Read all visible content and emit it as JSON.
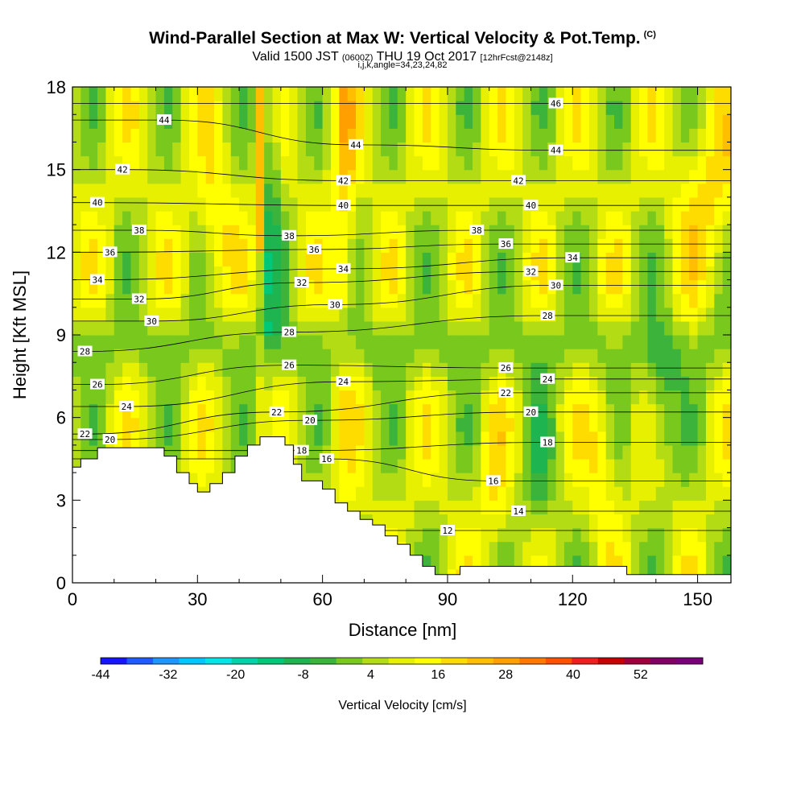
{
  "title": {
    "main": "Wind-Parallel Section at Max W: Vertical Velocity & Pot.Temp.",
    "copyright": "(C)",
    "valid_prefix": "Valid 1500 JST",
    "valid_utc": "(0600Z)",
    "valid_date": "THU 19 Oct 2017",
    "forecast": "[12hrFcst@2148z]",
    "ijk": "i,j,k,angle=34,23,24,82"
  },
  "chart_data": {
    "type": "heatmap",
    "xlabel": "Distance [nm]",
    "ylabel": "Height [Kft MSL]",
    "xlim": [
      0,
      158
    ],
    "ylim": [
      0,
      18
    ],
    "x_ticks": [
      0,
      30,
      60,
      90,
      120,
      150
    ],
    "y_ticks": [
      0,
      3,
      6,
      9,
      12,
      15,
      18
    ],
    "colorbar": {
      "label": "Vertical Velocity [cm/s]",
      "tick_labels": [
        "-44",
        "-32",
        "-20",
        "-8",
        "4",
        "16",
        "28",
        "40",
        "52"
      ],
      "colors": [
        "#1414ff",
        "#1e5aff",
        "#1e96ff",
        "#00c8ff",
        "#00e6e6",
        "#00d2aa",
        "#00c878",
        "#1eb450",
        "#3cb43c",
        "#78c81e",
        "#b4dc14",
        "#e6f000",
        "#ffff00",
        "#ffdc00",
        "#ffbe00",
        "#ffa000",
        "#ff7800",
        "#ff5000",
        "#f01e1e",
        "#c80000",
        "#a0003c",
        "#820064",
        "#780078"
      ]
    },
    "theta_contour_labels": [
      {
        "v": "46",
        "x": 116,
        "y": 17.4
      },
      {
        "v": "44",
        "x": 22,
        "y": 16.8
      },
      {
        "v": "44",
        "x": 68,
        "y": 15.9
      },
      {
        "v": "44",
        "x": 116,
        "y": 15.7
      },
      {
        "v": "42",
        "x": 12,
        "y": 15.0
      },
      {
        "v": "42",
        "x": 65,
        "y": 14.6
      },
      {
        "v": "42",
        "x": 107,
        "y": 14.6
      },
      {
        "v": "40",
        "x": 6,
        "y": 13.8
      },
      {
        "v": "40",
        "x": 65,
        "y": 13.7
      },
      {
        "v": "40",
        "x": 110,
        "y": 13.7
      },
      {
        "v": "38",
        "x": 16,
        "y": 12.8
      },
      {
        "v": "38",
        "x": 52,
        "y": 12.6
      },
      {
        "v": "38",
        "x": 97,
        "y": 12.8
      },
      {
        "v": "36",
        "x": 9,
        "y": 12.0
      },
      {
        "v": "36",
        "x": 58,
        "y": 12.1
      },
      {
        "v": "36",
        "x": 104,
        "y": 12.3
      },
      {
        "v": "34",
        "x": 6,
        "y": 11.0
      },
      {
        "v": "34",
        "x": 65,
        "y": 11.4
      },
      {
        "v": "34",
        "x": 120,
        "y": 11.8
      },
      {
        "v": "32",
        "x": 16,
        "y": 10.3
      },
      {
        "v": "32",
        "x": 55,
        "y": 10.9
      },
      {
        "v": "32",
        "x": 110,
        "y": 11.3
      },
      {
        "v": "30",
        "x": 19,
        "y": 9.5
      },
      {
        "v": "30",
        "x": 63,
        "y": 10.1
      },
      {
        "v": "30",
        "x": 116,
        "y": 10.8
      },
      {
        "v": "28",
        "x": 3,
        "y": 8.4
      },
      {
        "v": "28",
        "x": 52,
        "y": 9.1
      },
      {
        "v": "28",
        "x": 114,
        "y": 9.7
      },
      {
        "v": "26",
        "x": 6,
        "y": 7.2
      },
      {
        "v": "26",
        "x": 52,
        "y": 7.9
      },
      {
        "v": "26",
        "x": 104,
        "y": 7.8
      },
      {
        "v": "24",
        "x": 13,
        "y": 6.4
      },
      {
        "v": "24",
        "x": 65,
        "y": 7.3
      },
      {
        "v": "24",
        "x": 114,
        "y": 7.4
      },
      {
        "v": "22",
        "x": 3,
        "y": 5.4
      },
      {
        "v": "22",
        "x": 49,
        "y": 6.2
      },
      {
        "v": "22",
        "x": 104,
        "y": 6.9
      },
      {
        "v": "20",
        "x": 9,
        "y": 5.2
      },
      {
        "v": "20",
        "x": 57,
        "y": 5.9
      },
      {
        "v": "20",
        "x": 110,
        "y": 6.2
      },
      {
        "v": "18",
        "x": 55,
        "y": 4.8
      },
      {
        "v": "18",
        "x": 114,
        "y": 5.1
      },
      {
        "v": "16",
        "x": 61,
        "y": 4.5
      },
      {
        "v": "16",
        "x": 101,
        "y": 3.7
      },
      {
        "v": "14",
        "x": 107,
        "y": 2.6
      },
      {
        "v": "12",
        "x": 90,
        "y": 1.9
      }
    ],
    "terrain_profile": {
      "x": [
        0,
        2,
        2,
        4,
        4,
        6,
        6,
        9,
        9,
        12,
        12,
        16,
        16,
        19,
        19,
        22,
        22,
        25,
        25,
        28,
        28,
        30,
        30,
        33,
        33,
        36,
        36,
        39,
        39,
        42,
        42,
        45,
        45,
        48,
        48,
        51,
        51,
        53,
        53,
        55,
        55,
        58,
        58,
        60,
        60,
        63,
        63,
        66,
        66,
        69,
        69,
        72,
        72,
        75,
        75,
        78,
        78,
        81,
        81,
        84,
        84,
        87,
        87,
        90,
        90,
        93,
        93,
        133,
        133,
        139,
        139,
        158
      ],
      "y": [
        4.2,
        4.2,
        4.5,
        4.5,
        4.5,
        4.5,
        4.9,
        4.9,
        4.9,
        4.9,
        4.9,
        4.9,
        4.9,
        4.9,
        4.9,
        4.9,
        4.6,
        4.6,
        4.0,
        4.0,
        3.6,
        3.6,
        3.3,
        3.3,
        3.6,
        3.6,
        4.0,
        4.0,
        4.6,
        4.6,
        5.0,
        5.0,
        5.3,
        5.3,
        5.3,
        5.3,
        5.0,
        5.0,
        4.3,
        4.3,
        3.7,
        3.7,
        3.7,
        3.7,
        3.4,
        3.4,
        2.9,
        2.9,
        2.6,
        2.6,
        2.3,
        2.3,
        2.1,
        2.1,
        1.7,
        1.7,
        1.4,
        1.4,
        1.0,
        1.0,
        0.6,
        0.6,
        0.3,
        0.3,
        0.3,
        0.3,
        0.6,
        0.6,
        0.3,
        0.3,
        0.3,
        0.3
      ]
    }
  }
}
